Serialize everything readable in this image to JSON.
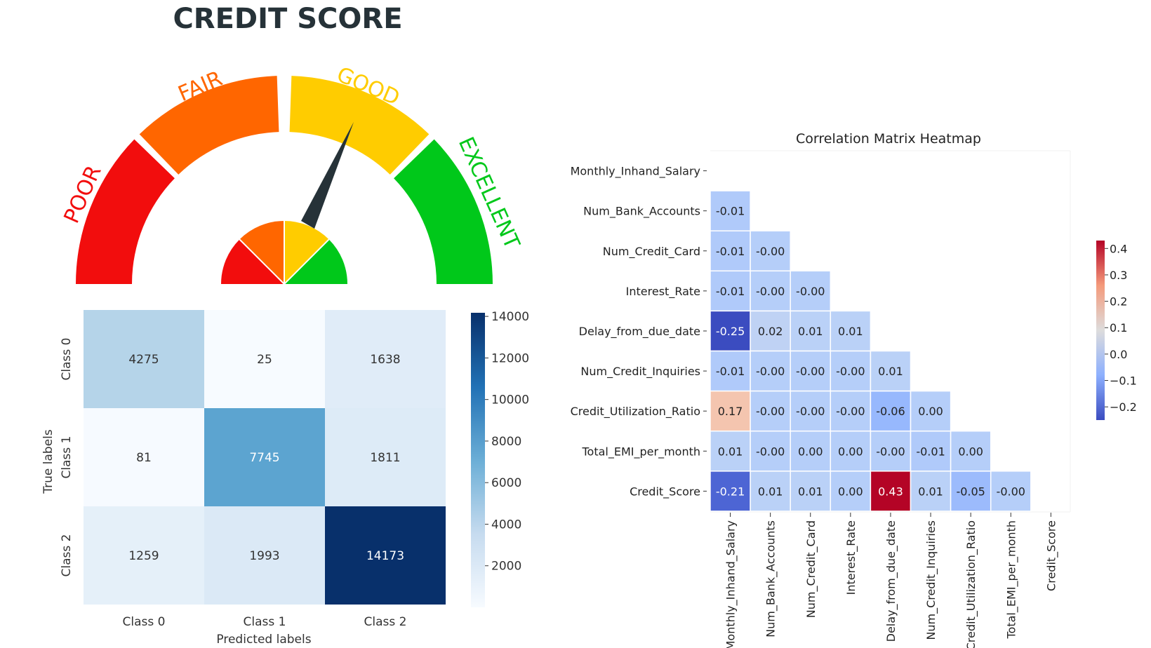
{
  "gauge": {
    "title": "CREDIT SCORE",
    "segments": [
      {
        "label": "POOR",
        "color": "#f20d0d"
      },
      {
        "label": "FAIR",
        "color": "#ff6600"
      },
      {
        "label": "GOOD",
        "color": "#ffcc00"
      },
      {
        "label": "EXCELLENT",
        "color": "#00c81a"
      }
    ],
    "needle_color": "#263238"
  },
  "chart_data": [
    {
      "type": "heatmap",
      "name": "confusion_matrix",
      "title": "",
      "xlabel": "Predicted labels",
      "ylabel": "True labels",
      "x_categories": [
        "Class 0",
        "Class 1",
        "Class 2"
      ],
      "y_categories": [
        "Class 0",
        "Class 1",
        "Class 2"
      ],
      "values": [
        [
          4275,
          25,
          1638
        ],
        [
          81,
          7745,
          1811
        ],
        [
          1259,
          1993,
          14173
        ]
      ],
      "colorbar": {
        "min": 0,
        "max": 14173,
        "ticks": [
          2000,
          4000,
          6000,
          8000,
          10000,
          12000,
          14000
        ],
        "colormap": "Blues"
      }
    },
    {
      "type": "heatmap",
      "name": "correlation_matrix",
      "title": "Correlation Matrix Heatmap",
      "xlabel": "",
      "ylabel": "",
      "labels": [
        "Monthly_Inhand_Salary",
        "Num_Bank_Accounts",
        "Num_Credit_Card",
        "Interest_Rate",
        "Delay_from_due_date",
        "Num_Credit_Inquiries",
        "Credit_Utilization_Ratio",
        "Total_EMI_per_month",
        "Credit_Score"
      ],
      "lower_triangle": [
        [],
        [
          "-0.01"
        ],
        [
          "-0.01",
          "-0.00"
        ],
        [
          "-0.01",
          "-0.00",
          "-0.00"
        ],
        [
          "-0.25",
          "0.02",
          "0.01",
          "0.01"
        ],
        [
          "-0.01",
          "-0.00",
          "-0.00",
          "-0.00",
          "0.01"
        ],
        [
          "0.17",
          "-0.00",
          "-0.00",
          "-0.00",
          "-0.06",
          "0.00"
        ],
        [
          "0.01",
          "-0.00",
          "0.00",
          "0.00",
          "-0.00",
          "-0.01",
          "0.00"
        ],
        [
          "-0.21",
          "0.01",
          "0.01",
          "0.00",
          "0.43",
          "0.01",
          "-0.05",
          "-0.00"
        ]
      ],
      "colorbar": {
        "min": -0.25,
        "max": 0.43,
        "ticks": [
          "0.4",
          "0.3",
          "0.2",
          "0.1",
          "0.0",
          "−0.1",
          "−0.2"
        ],
        "colormap": "coolwarm"
      }
    }
  ]
}
